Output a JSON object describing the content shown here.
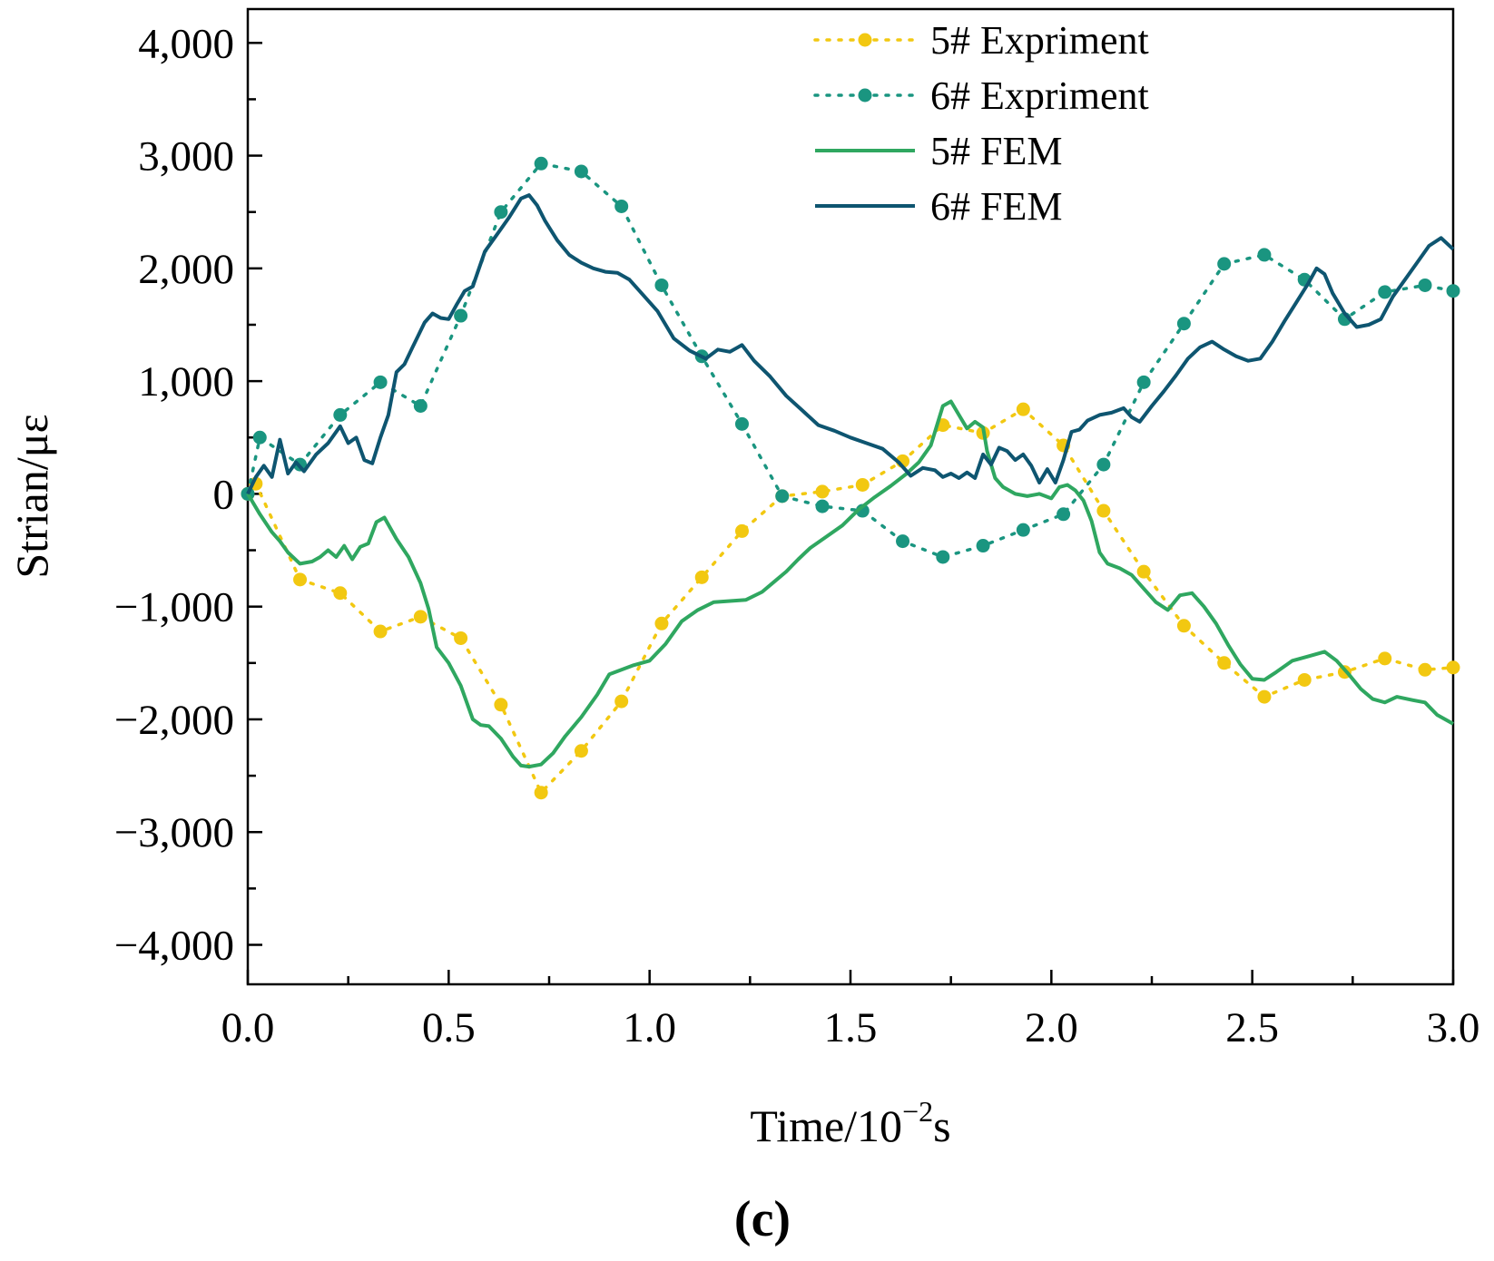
{
  "chart_data": {
    "type": "line",
    "title": "",
    "panel_label": "(c)",
    "xlabel": "Time/10",
    "xlabel_exponent": "−2",
    "xlabel_unit": "s",
    "ylabel": "Strian/με",
    "xlim": [
      0,
      3.0
    ],
    "ylim": [
      -4350,
      4300
    ],
    "xticks": [
      0,
      0.5,
      1.0,
      1.5,
      2.0,
      2.5,
      3.0
    ],
    "xtick_labels": [
      "0.0",
      "0.5",
      "1.0",
      "1.5",
      "2.0",
      "2.5",
      "3.0"
    ],
    "yticks": [
      4000,
      3000,
      2000,
      1000,
      0,
      -1000,
      -2000,
      -3000,
      -4000
    ],
    "ytick_labels": [
      "4,000",
      "3,000",
      "2,000",
      "1,000",
      "0",
      "−1,000",
      "−2,000",
      "−3,000",
      "−4,000"
    ],
    "grid": false,
    "legend_position": "top-right",
    "series": [
      {
        "name": "5# Expriment",
        "style": "dotted-markers",
        "color": "#F2C811",
        "x": [
          0.0,
          0.02,
          0.13,
          0.23,
          0.33,
          0.43,
          0.53,
          0.63,
          0.73,
          0.83,
          0.93,
          1.03,
          1.13,
          1.23,
          1.33,
          1.43,
          1.53,
          1.63,
          1.73,
          1.83,
          1.93,
          2.03,
          2.13,
          2.23,
          2.33,
          2.43,
          2.53,
          2.63,
          2.73,
          2.83,
          2.93,
          3.0
        ],
        "y": [
          0,
          90,
          -760,
          -880,
          -1220,
          -1090,
          -1280,
          -1870,
          -2650,
          -2280,
          -1840,
          -1150,
          -740,
          -330,
          -20,
          20,
          80,
          290,
          610,
          540,
          750,
          430,
          -150,
          -690,
          -1170,
          -1500,
          -1800,
          -1650,
          -1580,
          -1460,
          -1560,
          -1540
        ]
      },
      {
        "name": "6# Expriment",
        "style": "dotted-markers",
        "color": "#1A9580",
        "x": [
          0.0,
          0.03,
          0.13,
          0.23,
          0.33,
          0.43,
          0.53,
          0.63,
          0.73,
          0.83,
          0.93,
          1.03,
          1.13,
          1.23,
          1.33,
          1.43,
          1.53,
          1.63,
          1.73,
          1.83,
          1.93,
          2.03,
          2.13,
          2.23,
          2.33,
          2.43,
          2.53,
          2.63,
          2.73,
          2.83,
          2.93,
          3.0
        ],
        "y": [
          0,
          500,
          260,
          700,
          990,
          780,
          1580,
          2500,
          2930,
          2860,
          2550,
          1850,
          1220,
          620,
          -20,
          -110,
          -150,
          -420,
          -560,
          -460,
          -320,
          -180,
          260,
          990,
          1510,
          2040,
          2120,
          1900,
          1550,
          1790,
          1850,
          1800
        ]
      },
      {
        "name": "5# FEM",
        "style": "solid",
        "color": "#2FA760",
        "x": [
          0.0,
          0.03,
          0.06,
          0.08,
          0.1,
          0.13,
          0.16,
          0.18,
          0.2,
          0.22,
          0.24,
          0.26,
          0.28,
          0.3,
          0.32,
          0.34,
          0.37,
          0.4,
          0.43,
          0.45,
          0.47,
          0.5,
          0.53,
          0.56,
          0.58,
          0.6,
          0.63,
          0.66,
          0.68,
          0.7,
          0.73,
          0.76,
          0.79,
          0.83,
          0.87,
          0.9,
          0.93,
          0.96,
          1.0,
          1.04,
          1.08,
          1.12,
          1.16,
          1.2,
          1.24,
          1.28,
          1.31,
          1.34,
          1.37,
          1.4,
          1.44,
          1.48,
          1.52,
          1.56,
          1.6,
          1.64,
          1.67,
          1.7,
          1.73,
          1.75,
          1.77,
          1.79,
          1.81,
          1.83,
          1.84,
          1.86,
          1.88,
          1.91,
          1.94,
          1.97,
          2.0,
          2.02,
          2.04,
          2.06,
          2.08,
          2.1,
          2.12,
          2.14,
          2.17,
          2.2,
          2.23,
          2.26,
          2.29,
          2.32,
          2.35,
          2.38,
          2.41,
          2.44,
          2.47,
          2.5,
          2.53,
          2.56,
          2.6,
          2.64,
          2.68,
          2.71,
          2.74,
          2.77,
          2.8,
          2.83,
          2.86,
          2.9,
          2.93,
          2.96,
          3.0
        ],
        "y": [
          0,
          -180,
          -340,
          -420,
          -520,
          -620,
          -600,
          -560,
          -500,
          -560,
          -460,
          -580,
          -470,
          -440,
          -250,
          -210,
          -400,
          -560,
          -790,
          -1020,
          -1360,
          -1500,
          -1700,
          -2000,
          -2050,
          -2060,
          -2170,
          -2330,
          -2410,
          -2420,
          -2400,
          -2300,
          -2150,
          -1980,
          -1780,
          -1600,
          -1560,
          -1520,
          -1480,
          -1330,
          -1130,
          -1030,
          -960,
          -950,
          -940,
          -870,
          -780,
          -690,
          -580,
          -480,
          -380,
          -280,
          -140,
          -30,
          70,
          180,
          280,
          430,
          780,
          820,
          700,
          580,
          640,
          590,
          380,
          140,
          60,
          0,
          -20,
          0,
          -40,
          60,
          80,
          30,
          -60,
          -240,
          -520,
          -620,
          -660,
          -720,
          -840,
          -960,
          -1030,
          -900,
          -880,
          -1000,
          -1150,
          -1340,
          -1510,
          -1640,
          -1650,
          -1580,
          -1480,
          -1440,
          -1400,
          -1480,
          -1600,
          -1730,
          -1820,
          -1850,
          -1800,
          -1830,
          -1850,
          -1960,
          -2040
        ]
      },
      {
        "name": "6# FEM",
        "style": "solid",
        "color": "#0E5570",
        "x": [
          0.0,
          0.02,
          0.04,
          0.06,
          0.08,
          0.1,
          0.12,
          0.14,
          0.17,
          0.2,
          0.23,
          0.25,
          0.27,
          0.29,
          0.31,
          0.33,
          0.35,
          0.37,
          0.39,
          0.41,
          0.44,
          0.46,
          0.48,
          0.5,
          0.52,
          0.54,
          0.56,
          0.59,
          0.62,
          0.65,
          0.68,
          0.7,
          0.72,
          0.74,
          0.77,
          0.8,
          0.83,
          0.86,
          0.89,
          0.92,
          0.95,
          0.98,
          1.02,
          1.06,
          1.1,
          1.14,
          1.17,
          1.2,
          1.23,
          1.26,
          1.3,
          1.34,
          1.38,
          1.42,
          1.46,
          1.5,
          1.54,
          1.58,
          1.62,
          1.65,
          1.68,
          1.71,
          1.73,
          1.75,
          1.77,
          1.79,
          1.81,
          1.83,
          1.85,
          1.87,
          1.89,
          1.91,
          1.93,
          1.95,
          1.97,
          1.99,
          2.01,
          2.03,
          2.05,
          2.07,
          2.09,
          2.12,
          2.15,
          2.18,
          2.2,
          2.22,
          2.25,
          2.28,
          2.31,
          2.34,
          2.37,
          2.4,
          2.43,
          2.46,
          2.49,
          2.52,
          2.55,
          2.58,
          2.61,
          2.64,
          2.66,
          2.68,
          2.7,
          2.73,
          2.76,
          2.79,
          2.82,
          2.85,
          2.88,
          2.91,
          2.94,
          2.97,
          3.0
        ],
        "y": [
          0,
          150,
          250,
          150,
          480,
          180,
          280,
          200,
          350,
          450,
          600,
          450,
          500,
          300,
          270,
          500,
          700,
          1080,
          1150,
          1300,
          1520,
          1600,
          1560,
          1550,
          1680,
          1800,
          1840,
          2150,
          2300,
          2450,
          2620,
          2650,
          2560,
          2420,
          2250,
          2120,
          2050,
          2000,
          1970,
          1960,
          1900,
          1780,
          1620,
          1380,
          1270,
          1200,
          1280,
          1260,
          1320,
          1180,
          1040,
          870,
          740,
          610,
          560,
          500,
          450,
          400,
          280,
          160,
          230,
          210,
          150,
          180,
          140,
          190,
          140,
          350,
          260,
          410,
          380,
          300,
          350,
          250,
          100,
          220,
          100,
          300,
          550,
          570,
          650,
          700,
          720,
          760,
          680,
          640,
          780,
          910,
          1050,
          1200,
          1300,
          1350,
          1280,
          1220,
          1180,
          1200,
          1350,
          1530,
          1700,
          1870,
          2000,
          1950,
          1780,
          1600,
          1480,
          1500,
          1550,
          1750,
          1900,
          2050,
          2200,
          2270,
          2170
        ]
      }
    ]
  }
}
